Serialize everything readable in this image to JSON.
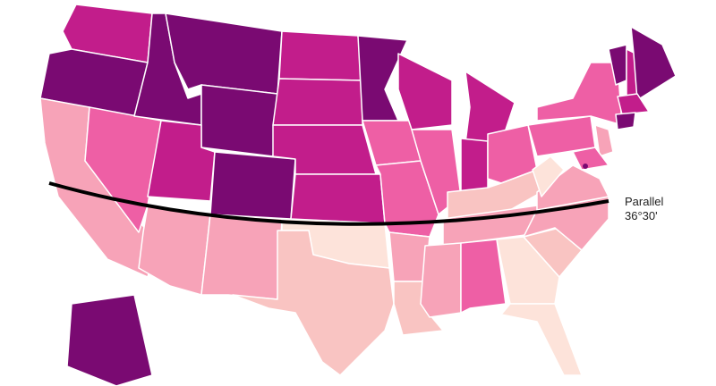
{
  "annotation": {
    "lines": [
      "Parallel",
      "36°30'"
    ]
  }
}
